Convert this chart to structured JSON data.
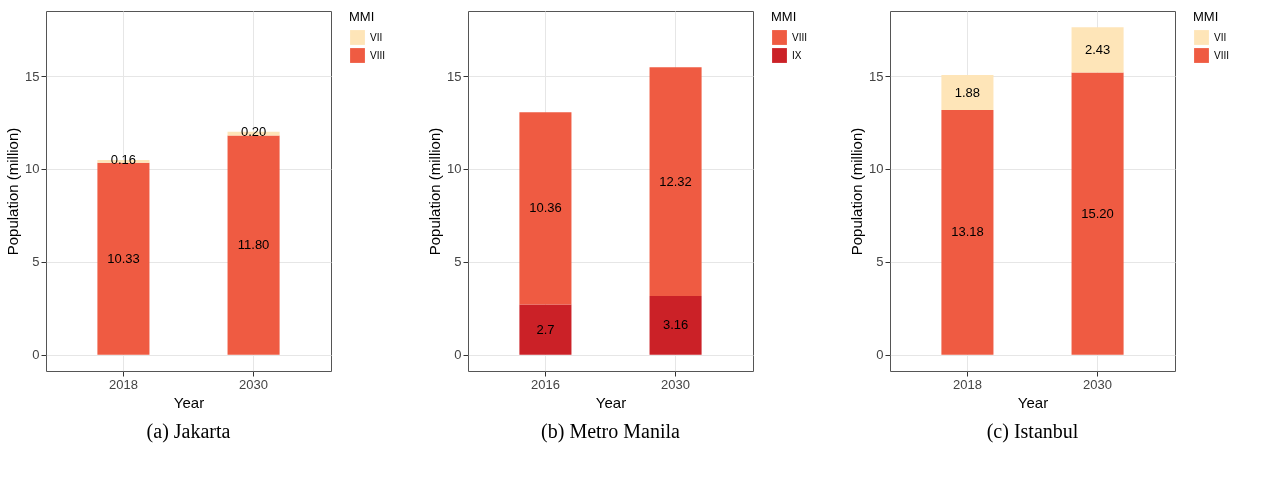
{
  "chart_data": [
    {
      "type": "bar",
      "title": "(a) Jakarta",
      "xlabel": "Year",
      "ylabel": "Population (million)",
      "legend_title": "MMI",
      "categories": [
        "2018",
        "2030"
      ],
      "stacked": true,
      "ylim": [
        -0.88,
        18.51
      ],
      "yticks": [
        0,
        5,
        10,
        15
      ],
      "grid": true,
      "legend": "right",
      "series": [
        {
          "name": "VIII",
          "color": "#ef5b42",
          "values": [
            10.33,
            11.8
          ],
          "value_labels": [
            "10.33",
            "11.80"
          ]
        },
        {
          "name": "VII",
          "color": "#fee5b8",
          "values": [
            0.16,
            0.2
          ],
          "value_labels": [
            "0.16",
            "0.20"
          ]
        }
      ]
    },
    {
      "type": "bar",
      "title": "(b) Metro Manila",
      "xlabel": "Year",
      "ylabel": "Population (million)",
      "legend_title": "MMI",
      "categories": [
        "2016",
        "2030"
      ],
      "stacked": true,
      "ylim": [
        -0.88,
        18.51
      ],
      "yticks": [
        0,
        5,
        10,
        15
      ],
      "grid": true,
      "legend": "right",
      "series": [
        {
          "name": "IX",
          "color": "#cb2127",
          "values": [
            2.7,
            3.16
          ],
          "value_labels": [
            "2.7",
            "3.16"
          ]
        },
        {
          "name": "VIII",
          "color": "#ef5b42",
          "values": [
            10.36,
            12.32
          ],
          "value_labels": [
            "10.36",
            "12.32"
          ]
        }
      ]
    },
    {
      "type": "bar",
      "title": "(c) Istanbul",
      "xlabel": "Year",
      "ylabel": "Population (million)",
      "legend_title": "MMI",
      "categories": [
        "2018",
        "2030"
      ],
      "stacked": true,
      "ylim": [
        -0.88,
        18.51
      ],
      "yticks": [
        0,
        5,
        10,
        15
      ],
      "grid": true,
      "legend": "right",
      "series": [
        {
          "name": "VIII",
          "color": "#ef5b42",
          "values": [
            13.18,
            15.2
          ],
          "value_labels": [
            "13.18",
            "15.20"
          ]
        },
        {
          "name": "VII",
          "color": "#fee5b8",
          "values": [
            1.88,
            2.43
          ],
          "value_labels": [
            "1.88",
            "2.43"
          ]
        }
      ]
    }
  ]
}
